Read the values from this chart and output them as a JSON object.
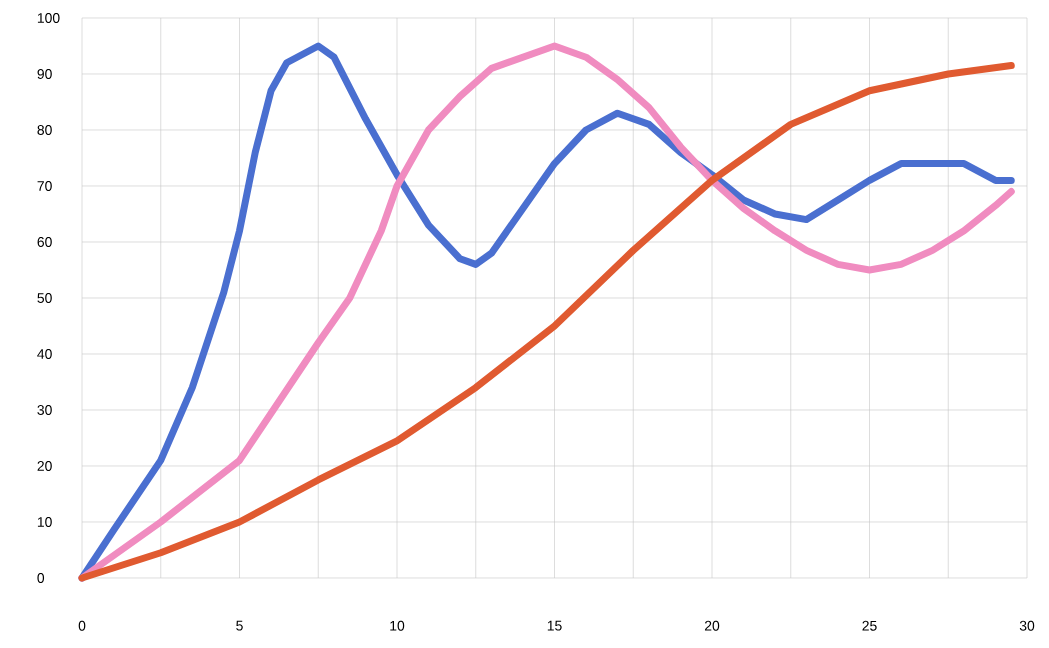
{
  "chart_data": {
    "type": "line",
    "x": [
      0,
      1,
      2.5,
      3.5,
      4.5,
      5,
      5.5,
      6,
      6.5,
      7.5,
      8,
      9,
      10,
      11,
      12,
      12.5,
      13,
      14,
      15,
      16,
      17,
      18,
      19,
      20,
      21,
      22,
      23,
      24,
      25,
      26,
      27,
      28,
      29,
      29.5
    ],
    "series": [
      {
        "color": "#4a6fd0",
        "values": [
          0,
          8.5,
          21,
          34,
          51,
          62,
          76,
          87,
          92,
          95,
          93,
          82,
          72,
          63,
          57,
          56,
          58,
          66,
          74,
          80,
          83,
          81,
          76,
          72,
          67.5,
          65,
          64,
          67.5,
          71,
          74,
          74,
          74,
          71,
          71
        ]
      },
      {
        "color": "#f08cc0",
        "x": [
          0,
          2.5,
          5,
          7.5,
          8.5,
          9.5,
          10,
          11,
          12,
          13,
          14,
          15,
          16,
          17,
          18,
          19,
          20,
          21,
          22,
          23,
          24,
          25,
          26,
          27,
          28,
          29,
          29.5
        ],
        "values": [
          0,
          10,
          21,
          42,
          50,
          62,
          70,
          80,
          86,
          91,
          93,
          95,
          93,
          89,
          84,
          77,
          71,
          66,
          62,
          58.5,
          56,
          55,
          56,
          58.5,
          62,
          66.5,
          69
        ]
      },
      {
        "color": "#e05a30",
        "x": [
          0,
          2.5,
          5,
          7.5,
          10,
          12.5,
          15,
          17.5,
          20,
          22.5,
          25,
          27.5,
          29.5
        ],
        "values": [
          0,
          4.5,
          10,
          17.5,
          24.5,
          34,
          45,
          58.5,
          71,
          81,
          87,
          90,
          91.5
        ]
      }
    ],
    "xlim": [
      0,
      30
    ],
    "ylim": [
      0,
      100
    ],
    "xticks": [
      0,
      {
        "value": 2.5,
        "label": null
      },
      5,
      {
        "value": 7.5,
        "label": null
      },
      10,
      {
        "value": 12.5,
        "label": null
      },
      15,
      {
        "value": 17.5,
        "label": null
      },
      20,
      {
        "value": 22.5,
        "label": null
      },
      25,
      {
        "value": 27.5,
        "label": null
      },
      30
    ],
    "yticks": [
      0,
      10,
      20,
      30,
      40,
      50,
      60,
      70,
      80,
      90,
      100
    ],
    "grid": true,
    "marker": "none",
    "line_style": "solid"
  }
}
